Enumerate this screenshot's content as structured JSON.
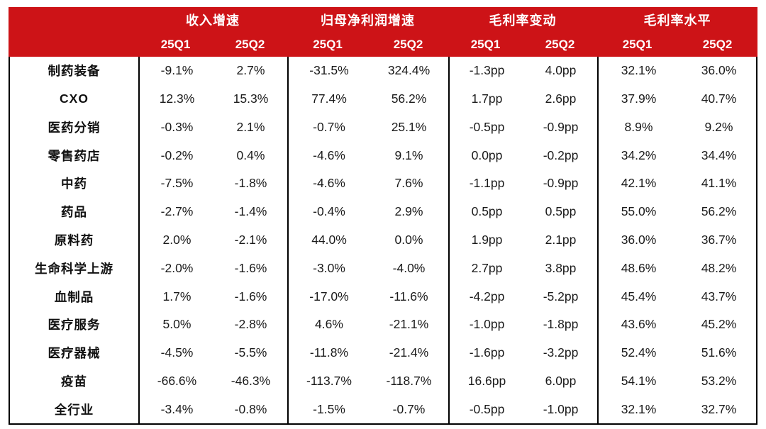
{
  "colors": {
    "header_bg": "#cd1317",
    "header_text": "#ffffff",
    "body_text": "#1a1a1a",
    "border": "#000000"
  },
  "table": {
    "groups": [
      "收入增速",
      "归母净利润增速",
      "毛利率变动",
      "毛利率水平"
    ],
    "subheaders": [
      "25Q1",
      "25Q2",
      "25Q1",
      "25Q2",
      "25Q1",
      "25Q2",
      "25Q1",
      "25Q2"
    ],
    "rows": [
      {
        "label": "制药装备",
        "values": [
          "-9.1%",
          "2.7%",
          "-31.5%",
          "324.4%",
          "-1.3pp",
          "4.0pp",
          "32.1%",
          "36.0%"
        ]
      },
      {
        "label": "CXO",
        "values": [
          "12.3%",
          "15.3%",
          "77.4%",
          "56.2%",
          "1.7pp",
          "2.6pp",
          "37.9%",
          "40.7%"
        ]
      },
      {
        "label": "医药分销",
        "values": [
          "-0.3%",
          "2.1%",
          "-0.7%",
          "25.1%",
          "-0.5pp",
          "-0.9pp",
          "8.9%",
          "9.2%"
        ]
      },
      {
        "label": "零售药店",
        "values": [
          "-0.2%",
          "0.4%",
          "-4.6%",
          "9.1%",
          "0.0pp",
          "-0.2pp",
          "34.2%",
          "34.4%"
        ]
      },
      {
        "label": "中药",
        "values": [
          "-7.5%",
          "-1.8%",
          "-4.6%",
          "7.6%",
          "-1.1pp",
          "-0.9pp",
          "42.1%",
          "41.1%"
        ]
      },
      {
        "label": "药品",
        "values": [
          "-2.7%",
          "-1.4%",
          "-0.4%",
          "2.9%",
          "0.5pp",
          "0.5pp",
          "55.0%",
          "56.2%"
        ]
      },
      {
        "label": "原料药",
        "values": [
          "2.0%",
          "-2.1%",
          "44.0%",
          "0.0%",
          "1.9pp",
          "2.1pp",
          "36.0%",
          "36.7%"
        ]
      },
      {
        "label": "生命科学上游",
        "values": [
          "-2.0%",
          "-1.6%",
          "-3.0%",
          "-4.0%",
          "2.7pp",
          "3.8pp",
          "48.6%",
          "48.2%"
        ]
      },
      {
        "label": "血制品",
        "values": [
          "1.7%",
          "-1.6%",
          "-17.0%",
          "-11.6%",
          "-4.2pp",
          "-5.2pp",
          "45.4%",
          "43.7%"
        ]
      },
      {
        "label": "医疗服务",
        "values": [
          "5.0%",
          "-2.8%",
          "4.6%",
          "-21.1%",
          "-1.0pp",
          "-1.8pp",
          "43.6%",
          "45.2%"
        ]
      },
      {
        "label": "医疗器械",
        "values": [
          "-4.5%",
          "-5.5%",
          "-11.8%",
          "-21.4%",
          "-1.6pp",
          "-3.2pp",
          "52.4%",
          "51.6%"
        ]
      },
      {
        "label": "疫苗",
        "values": [
          "-66.6%",
          "-46.3%",
          "-113.7%",
          "-118.7%",
          "16.6pp",
          "6.0pp",
          "54.1%",
          "53.2%"
        ]
      },
      {
        "label": "全行业",
        "values": [
          "-3.4%",
          "-0.8%",
          "-1.5%",
          "-0.7%",
          "-0.5pp",
          "-1.0pp",
          "32.1%",
          "32.7%"
        ]
      }
    ]
  },
  "chart_data": {
    "type": "table",
    "title": "",
    "column_groups": [
      "收入增速",
      "归母净利润增速",
      "毛利率变动",
      "毛利率水平"
    ],
    "columns": [
      "收入增速 25Q1",
      "收入增速 25Q2",
      "归母净利润增速 25Q1",
      "归母净利润增速 25Q2",
      "毛利率变动 25Q1",
      "毛利率变动 25Q2",
      "毛利率水平 25Q1",
      "毛利率水平 25Q2"
    ],
    "row_labels": [
      "制药装备",
      "CXO",
      "医药分销",
      "零售药店",
      "中药",
      "药品",
      "原料药",
      "生命科学上游",
      "血制品",
      "医疗服务",
      "医疗器械",
      "疫苗",
      "全行业"
    ],
    "values": [
      [
        -9.1,
        2.7,
        -31.5,
        324.4,
        -1.3,
        4.0,
        32.1,
        36.0
      ],
      [
        12.3,
        15.3,
        77.4,
        56.2,
        1.7,
        2.6,
        37.9,
        40.7
      ],
      [
        -0.3,
        2.1,
        -0.7,
        25.1,
        -0.5,
        -0.9,
        8.9,
        9.2
      ],
      [
        -0.2,
        0.4,
        -4.6,
        9.1,
        0.0,
        -0.2,
        34.2,
        34.4
      ],
      [
        -7.5,
        -1.8,
        -4.6,
        7.6,
        -1.1,
        -0.9,
        42.1,
        41.1
      ],
      [
        -2.7,
        -1.4,
        -0.4,
        2.9,
        0.5,
        0.5,
        55.0,
        56.2
      ],
      [
        2.0,
        -2.1,
        44.0,
        0.0,
        1.9,
        2.1,
        36.0,
        36.7
      ],
      [
        -2.0,
        -1.6,
        -3.0,
        -4.0,
        2.7,
        3.8,
        48.6,
        48.2
      ],
      [
        1.7,
        -1.6,
        -17.0,
        -11.6,
        -4.2,
        -5.2,
        45.4,
        43.7
      ],
      [
        5.0,
        -2.8,
        4.6,
        -21.1,
        -1.0,
        -1.8,
        43.6,
        45.2
      ],
      [
        -4.5,
        -5.5,
        -11.8,
        -21.4,
        -1.6,
        -3.2,
        52.4,
        51.6
      ],
      [
        -66.6,
        -46.3,
        -113.7,
        -118.7,
        16.6,
        6.0,
        54.1,
        53.2
      ],
      [
        -3.4,
        -0.8,
        -1.5,
        -0.7,
        -0.5,
        -1.0,
        32.1,
        32.7
      ]
    ],
    "units": [
      "%",
      "%",
      "%",
      "%",
      "pp",
      "pp",
      "%",
      "%"
    ]
  }
}
